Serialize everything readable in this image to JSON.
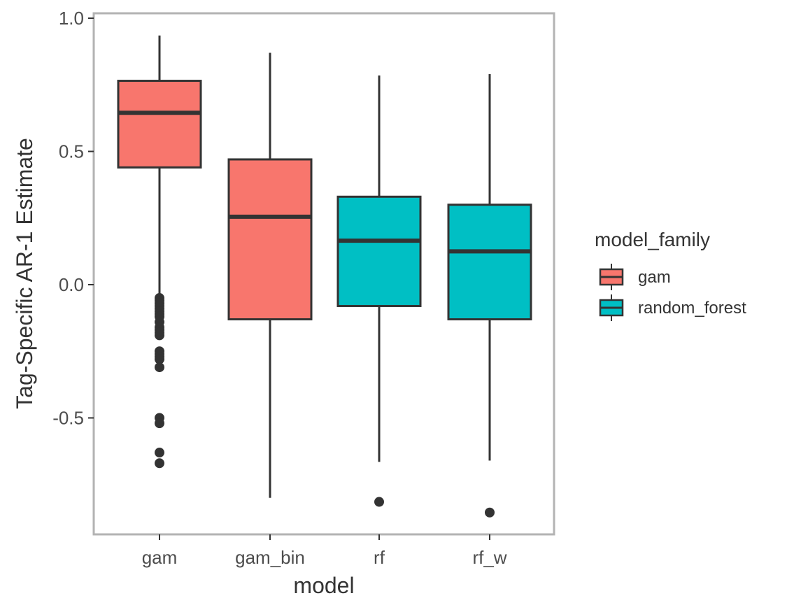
{
  "chart_data": {
    "type": "boxplot",
    "xlabel": "model",
    "ylabel": "Tag-Specific AR-1 Estimate",
    "ylim": [
      -0.93,
      1.0
    ],
    "yticks": [
      -0.5,
      0.0,
      0.5,
      1.0
    ],
    "ytick_labels": [
      "-0.5",
      "0.0",
      "0.5",
      "1.0"
    ],
    "categories": [
      "gam",
      "gam_bin",
      "rf",
      "rf_w"
    ],
    "grid": false,
    "legend": {
      "title": "model_family",
      "position": "right",
      "entries": [
        {
          "label": "gam",
          "color": "#F8766D"
        },
        {
          "label": "random_forest",
          "color": "#00BFC4"
        }
      ]
    },
    "boxes": [
      {
        "category": "gam",
        "family": "gam",
        "whisker_low": -0.04,
        "q1": 0.44,
        "median": 0.645,
        "q3": 0.765,
        "whisker_high": 0.935,
        "outliers": [
          -0.05,
          -0.06,
          -0.07,
          -0.08,
          -0.09,
          -0.1,
          -0.11,
          -0.12,
          -0.14,
          -0.16,
          -0.17,
          -0.18,
          -0.19,
          -0.25,
          -0.26,
          -0.27,
          -0.28,
          -0.31,
          -0.5,
          -0.52,
          -0.63,
          -0.67
        ]
      },
      {
        "category": "gam_bin",
        "family": "gam",
        "whisker_low": -0.8,
        "q1": -0.13,
        "median": 0.255,
        "q3": 0.47,
        "whisker_high": 0.87,
        "outliers": []
      },
      {
        "category": "rf",
        "family": "random_forest",
        "whisker_low": -0.665,
        "q1": -0.08,
        "median": 0.165,
        "q3": 0.33,
        "whisker_high": 0.785,
        "outliers": [
          -0.815
        ]
      },
      {
        "category": "rf_w",
        "family": "random_forest",
        "whisker_low": -0.66,
        "q1": -0.13,
        "median": 0.125,
        "q3": 0.3,
        "whisker_high": 0.79,
        "outliers": [
          -0.855
        ]
      }
    ],
    "colors": {
      "gam": "#F8766D",
      "random_forest": "#00BFC4",
      "line": "#333333",
      "panel_border": "#B3B3B3"
    }
  }
}
